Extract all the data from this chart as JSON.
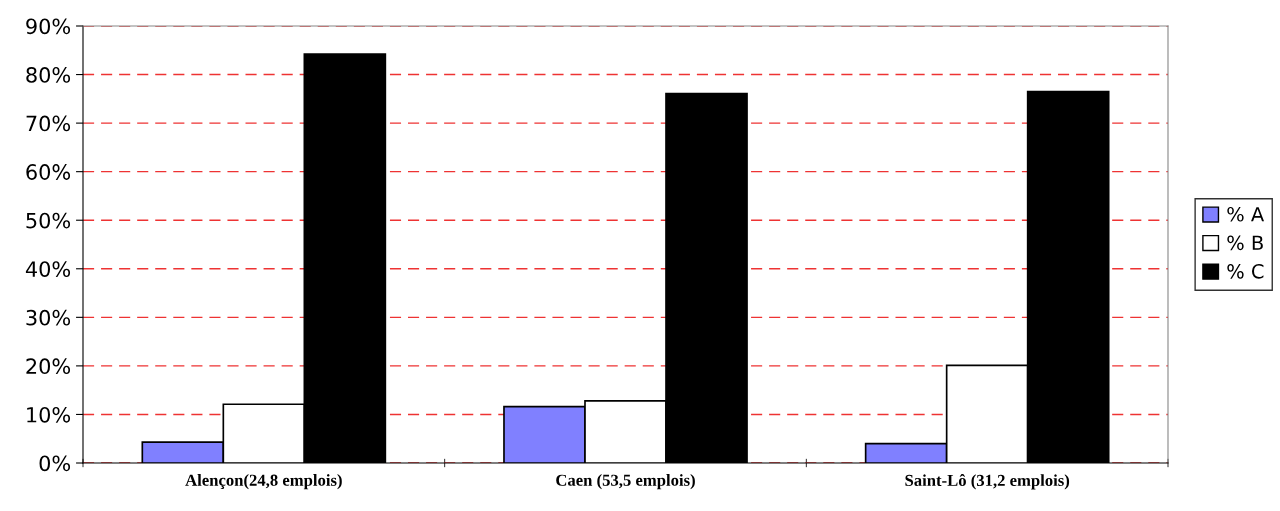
{
  "chart_data": {
    "type": "bar",
    "categories": [
      "Alençon(24,8 emplois)",
      "Caen (53,5 emplois)",
      "Saint-Lô (31,2 emplois)"
    ],
    "series": [
      {
        "name": "% A",
        "color": "#8080ff",
        "values": [
          4.3,
          11.6,
          4.0
        ]
      },
      {
        "name": "% B",
        "color": "#ffffff",
        "values": [
          12.1,
          12.8,
          20.1
        ]
      },
      {
        "name": "% C",
        "color": "#000000",
        "values": [
          84.2,
          76.1,
          76.5
        ]
      }
    ],
    "ylim": [
      0,
      90
    ],
    "yticks": [
      {
        "value": 0,
        "label": "0%"
      },
      {
        "value": 10,
        "label": "10%"
      },
      {
        "value": 20,
        "label": "20%"
      },
      {
        "value": 30,
        "label": "30%"
      },
      {
        "value": 40,
        "label": "40%"
      },
      {
        "value": 50,
        "label": "50%"
      },
      {
        "value": 60,
        "label": "60%"
      },
      {
        "value": 70,
        "label": "70%"
      },
      {
        "value": 80,
        "label": "80%"
      },
      {
        "value": 90,
        "label": "90%"
      }
    ],
    "grid": "y",
    "legend": "right"
  }
}
